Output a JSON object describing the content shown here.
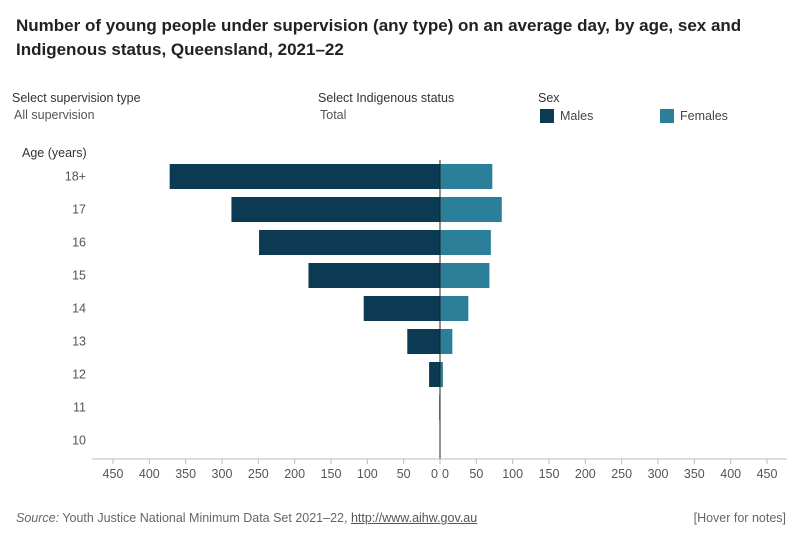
{
  "title": "Number of young people under supervision (any type) on an average day, by age, sex and Indigenous status, Queensland, 2021–22",
  "controls": {
    "supervision": {
      "label": "Select supervision type",
      "value": "All supervision"
    },
    "indigenous": {
      "label": "Select Indigenous status",
      "value": "Total"
    }
  },
  "legend": {
    "title": "Sex",
    "items": [
      {
        "label": "Males",
        "color": "#0c3a52"
      },
      {
        "label": "Females",
        "color": "#2c7f99"
      }
    ]
  },
  "footer": {
    "source_label": "Source:",
    "source_text": " Youth Justice National Minimum Data Set 2021–22, ",
    "link_text": "http://www.aihw.gov.au",
    "notes": "[Hover for notes]"
  },
  "chart_data": {
    "type": "bar",
    "orientation": "horizontal-butterfly",
    "ylabel": "Age (years)",
    "categories": [
      "18+",
      "17",
      "16",
      "15",
      "14",
      "13",
      "12",
      "11",
      "10"
    ],
    "series": [
      {
        "name": "Males",
        "values": [
          372,
          287,
          249,
          181,
          105,
          45,
          15,
          1,
          0
        ]
      },
      {
        "name": "Females",
        "values": [
          72,
          85,
          70,
          68,
          39,
          17,
          4,
          0,
          0
        ]
      }
    ],
    "xlim": [
      -450,
      450
    ],
    "xticks": [
      "450",
      "400",
      "350",
      "300",
      "250",
      "200",
      "150",
      "100",
      "50",
      "0",
      "0",
      "50",
      "100",
      "150",
      "200",
      "250",
      "300",
      "350",
      "400",
      "450"
    ]
  }
}
